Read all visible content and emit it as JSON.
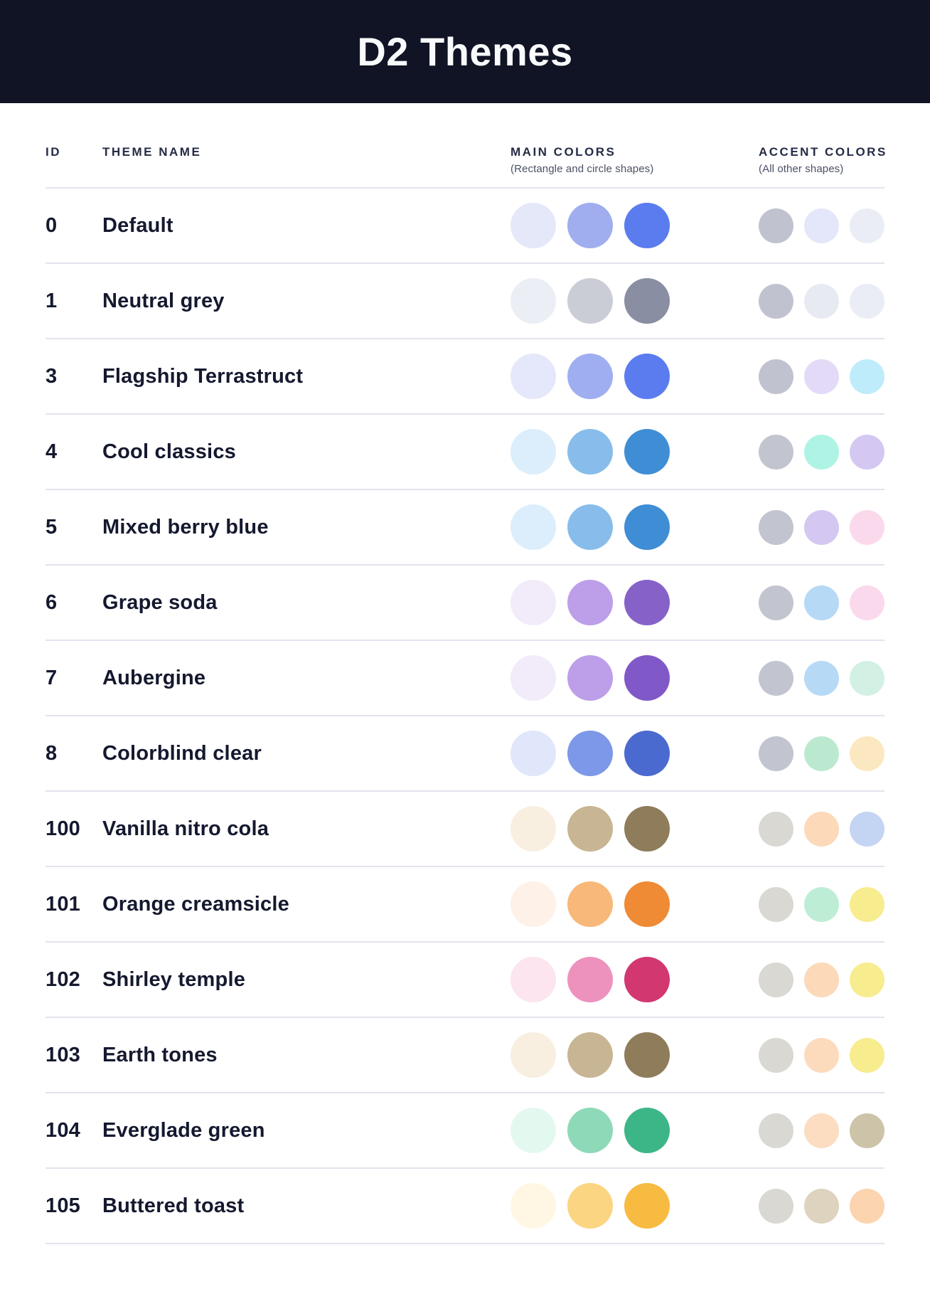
{
  "header": {
    "title": "D2 Themes"
  },
  "columns": {
    "id_label": "ID",
    "theme_name_label": "THEME NAME",
    "main_label": "MAIN COLORS",
    "main_sub": "(Rectangle and circle shapes)",
    "accent_label": "ACCENT COLORS",
    "accent_sub": "(All other shapes)"
  },
  "colors": {
    "header_bg": "#101425",
    "title_color": "#F9FAFC",
    "text_dark": "#15192F",
    "heading_color": "#252B45",
    "subheading_color": "#4B5064",
    "divider": "#E2E4EE",
    "page_bg": "#FFFFFF"
  },
  "themes": [
    {
      "id": "0",
      "name": "Default",
      "main": [
        "#E5E8F9",
        "#A0AEEF",
        "#5B7CEF"
      ],
      "accent": [
        "#C0C2CF",
        "#E4E6F9",
        "#EAEDF5"
      ]
    },
    {
      "id": "1",
      "name": "Neutral grey",
      "main": [
        "#EBEEF5",
        "#CBCDD6",
        "#898EA2"
      ],
      "accent": [
        "#C0C2CF",
        "#E8EAF2",
        "#EAEDF5"
      ]
    },
    {
      "id": "3",
      "name": "Flagship Terrastruct",
      "main": [
        "#E4E8FA",
        "#9FAEF0",
        "#5B7CEF"
      ],
      "accent": [
        "#C0C2CF",
        "#E2DAF7",
        "#BEECFA"
      ]
    },
    {
      "id": "4",
      "name": "Cool classics",
      "main": [
        "#DCEEFB",
        "#88BDEB",
        "#3F8ED5"
      ],
      "accent": [
        "#C2C4CF",
        "#AFF3E5",
        "#D4C8F2"
      ]
    },
    {
      "id": "5",
      "name": "Mixed berry blue",
      "main": [
        "#DCEEFB",
        "#88BDEB",
        "#3F8ED5"
      ],
      "accent": [
        "#C2C4CF",
        "#D4C8F2",
        "#FBD9EC"
      ]
    },
    {
      "id": "6",
      "name": "Grape soda",
      "main": [
        "#F2EBFA",
        "#BD9EE9",
        "#8662C8"
      ],
      "accent": [
        "#C2C4CF",
        "#B6D9F6",
        "#FBD9EC"
      ]
    },
    {
      "id": "7",
      "name": "Aubergine",
      "main": [
        "#F2EBFA",
        "#BD9EE9",
        "#8158C8"
      ],
      "accent": [
        "#C2C4CF",
        "#B6D9F6",
        "#D3F0E4"
      ]
    },
    {
      "id": "8",
      "name": "Colorblind clear",
      "main": [
        "#E0E7FB",
        "#7D98E8",
        "#4B6AD0"
      ],
      "accent": [
        "#C2C4CF",
        "#BBE9CF",
        "#FCE8C0"
      ]
    },
    {
      "id": "100",
      "name": "Vanilla nitro cola",
      "main": [
        "#F9EFE0",
        "#C8B593",
        "#8E7C5A"
      ],
      "accent": [
        "#DAD8D2",
        "#FCD9B8",
        "#C4D4F3"
      ]
    },
    {
      "id": "101",
      "name": "Orange creamsicle",
      "main": [
        "#FEF1E8",
        "#F7B87A",
        "#EF8A35"
      ],
      "accent": [
        "#DAD8D2",
        "#BEEDD6",
        "#F7EC8E"
      ]
    },
    {
      "id": "102",
      "name": "Shirley temple",
      "main": [
        "#FCE5EF",
        "#ED92BD",
        "#D23770"
      ],
      "accent": [
        "#DAD8D2",
        "#FCD9B8",
        "#F7EC8E"
      ]
    },
    {
      "id": "103",
      "name": "Earth tones",
      "main": [
        "#F9EFE0",
        "#C8B593",
        "#8E7C5A"
      ],
      "accent": [
        "#DAD8D2",
        "#FCDBBD",
        "#F7EC8E"
      ]
    },
    {
      "id": "104",
      "name": "Everglade green",
      "main": [
        "#E3F9F0",
        "#8ED9B8",
        "#3DB687"
      ],
      "accent": [
        "#DAD8D2",
        "#FCDDC2",
        "#CDC3A9"
      ]
    },
    {
      "id": "105",
      "name": "Buttered toast",
      "main": [
        "#FFF7E3",
        "#FBD582",
        "#F7BB42"
      ],
      "accent": [
        "#DAD8D2",
        "#DDD3BE",
        "#FCD4B0"
      ]
    }
  ],
  "chart_data": {
    "type": "table",
    "title": "D2 Themes",
    "columns": [
      "ID",
      "THEME NAME",
      "MAIN COLORS (Rectangle and circle shapes)",
      "ACCENT COLORS (All other shapes)"
    ],
    "rows": [
      [
        "0",
        "Default",
        [
          "#E5E8F9",
          "#A0AEEF",
          "#5B7CEF"
        ],
        [
          "#C0C2CF",
          "#E4E6F9",
          "#EAEDF5"
        ]
      ],
      [
        "1",
        "Neutral grey",
        [
          "#EBEEF5",
          "#CBCDD6",
          "#898EA2"
        ],
        [
          "#C0C2CF",
          "#E8EAF2",
          "#EAEDF5"
        ]
      ],
      [
        "3",
        "Flagship Terrastruct",
        [
          "#E4E8FA",
          "#9FAEF0",
          "#5B7CEF"
        ],
        [
          "#C0C2CF",
          "#E2DAF7",
          "#BEECFA"
        ]
      ],
      [
        "4",
        "Cool classics",
        [
          "#DCEEFB",
          "#88BDEB",
          "#3F8ED5"
        ],
        [
          "#C2C4CF",
          "#AFF3E5",
          "#D4C8F2"
        ]
      ],
      [
        "5",
        "Mixed berry blue",
        [
          "#DCEEFB",
          "#88BDEB",
          "#3F8ED5"
        ],
        [
          "#C2C4CF",
          "#D4C8F2",
          "#FBD9EC"
        ]
      ],
      [
        "6",
        "Grape soda",
        [
          "#F2EBFA",
          "#BD9EE9",
          "#8662C8"
        ],
        [
          "#C2C4CF",
          "#B6D9F6",
          "#FBD9EC"
        ]
      ],
      [
        "7",
        "Aubergine",
        [
          "#F2EBFA",
          "#BD9EE9",
          "#8158C8"
        ],
        [
          "#C2C4CF",
          "#B6D9F6",
          "#D3F0E4"
        ]
      ],
      [
        "8",
        "Colorblind clear",
        [
          "#E0E7FB",
          "#7D98E8",
          "#4B6AD0"
        ],
        [
          "#C2C4CF",
          "#BBE9CF",
          "#FCE8C0"
        ]
      ],
      [
        "100",
        "Vanilla nitro cola",
        [
          "#F9EFE0",
          "#C8B593",
          "#8E7C5A"
        ],
        [
          "#DAD8D2",
          "#FCD9B8",
          "#C4D4F3"
        ]
      ],
      [
        "101",
        "Orange creamsicle",
        [
          "#FEF1E8",
          "#F7B87A",
          "#EF8A35"
        ],
        [
          "#DAD8D2",
          "#BEEDD6",
          "#F7EC8E"
        ]
      ],
      [
        "102",
        "Shirley temple",
        [
          "#FCE5EF",
          "#ED92BD",
          "#D23770"
        ],
        [
          "#DAD8D2",
          "#FCD9B8",
          "#F7EC8E"
        ]
      ],
      [
        "103",
        "Earth tones",
        [
          "#F9EFE0",
          "#C8B593",
          "#8E7C5A"
        ],
        [
          "#DAD8D2",
          "#FCDBBD",
          "#F7EC8E"
        ]
      ],
      [
        "104",
        "Everglade green",
        [
          "#E3F9F0",
          "#8ED9B8",
          "#3DB687"
        ],
        [
          "#DAD8D2",
          "#FCDDC2",
          "#CDC3A9"
        ]
      ],
      [
        "105",
        "Buttered toast",
        [
          "#FFF7E3",
          "#FBD582",
          "#F7BB42"
        ],
        [
          "#DAD8D2",
          "#DDD3BE",
          "#FCD4B0"
        ]
      ]
    ],
    "layout_hints": {
      "grid": "horizontal row separators only",
      "swatch_shape": "circle"
    }
  }
}
